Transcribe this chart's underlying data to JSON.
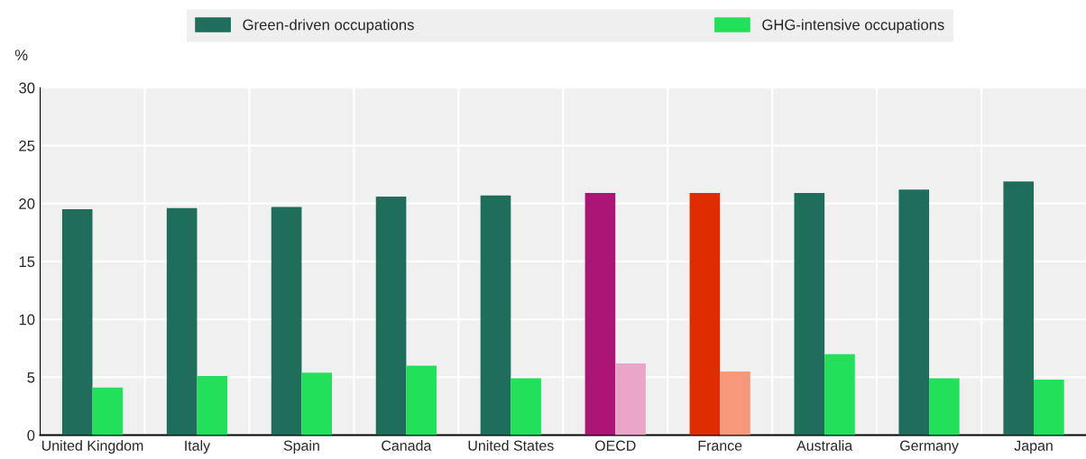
{
  "chart_data": {
    "type": "bar",
    "ylabel": "%",
    "categories": [
      "United Kingdom",
      "Italy",
      "Spain",
      "Canada",
      "United States",
      "OECD",
      "France",
      "Australia",
      "Germany",
      "Japan"
    ],
    "series": [
      {
        "name": "Green-driven occupations",
        "color": "#1f6e5b",
        "colors": [
          "#1f6e5b",
          "#1f6e5b",
          "#1f6e5b",
          "#1f6e5b",
          "#1f6e5b",
          "#ab1674",
          "#de2d00",
          "#1f6e5b",
          "#1f6e5b",
          "#1f6e5b"
        ],
        "values": [
          19.5,
          19.6,
          19.7,
          20.6,
          20.7,
          20.9,
          20.9,
          20.9,
          21.2,
          21.9
        ]
      },
      {
        "name": "GHG-intensive occupations",
        "color": "#22e05a",
        "colors": [
          "#22e05a",
          "#22e05a",
          "#22e05a",
          "#22e05a",
          "#22e05a",
          "#eaa6c9",
          "#f6987a",
          "#22e05a",
          "#22e05a",
          "#22e05a"
        ],
        "values": [
          4.1,
          5.1,
          5.4,
          6.0,
          4.9,
          6.2,
          5.5,
          7.0,
          4.9,
          4.8
        ]
      }
    ],
    "ylim": [
      0,
      30
    ],
    "yticks": [
      0,
      5,
      10,
      15,
      20,
      25,
      30
    ],
    "grid": true,
    "legend": "top"
  }
}
